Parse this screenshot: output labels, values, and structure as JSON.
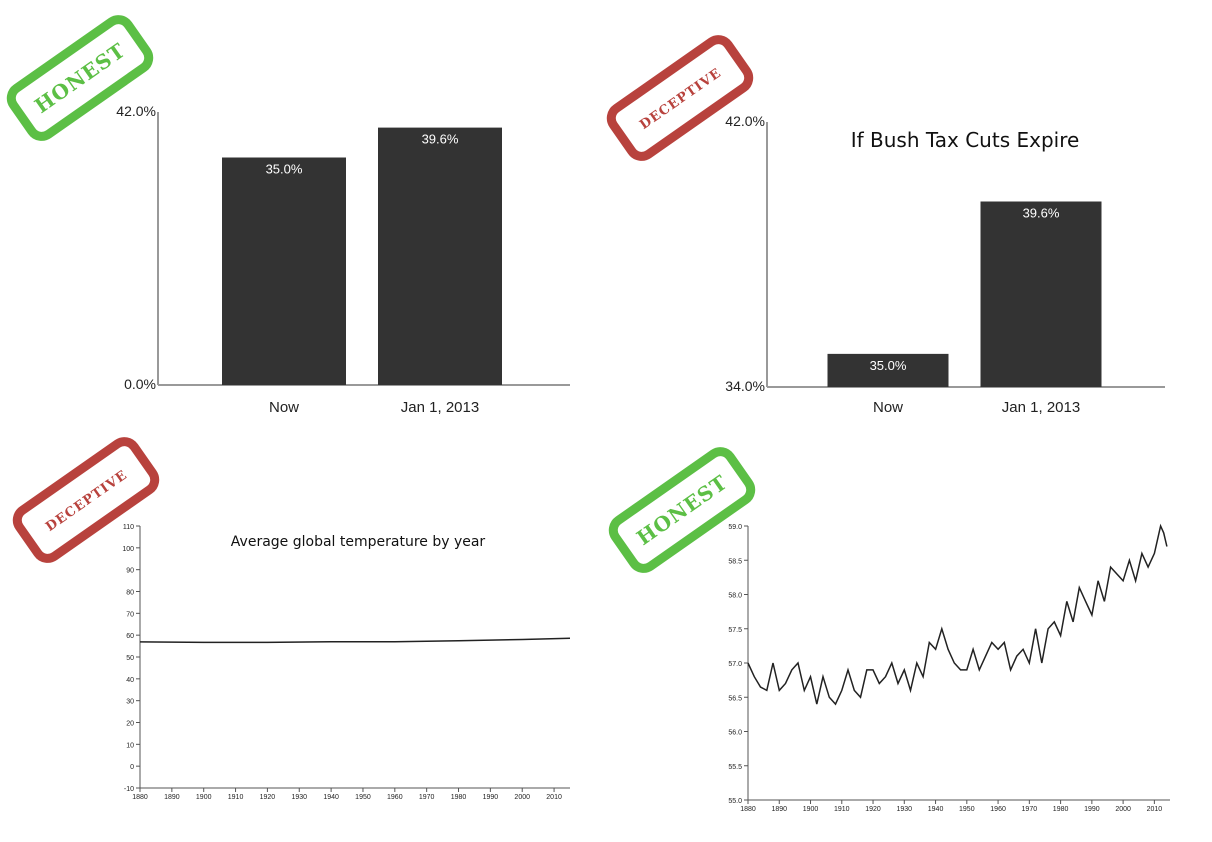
{
  "stamps": [
    {
      "text": "HONEST",
      "color": "#5cbf45"
    },
    {
      "text": "DECEPTIVE",
      "color": "#b8423d"
    },
    {
      "text": "DECEPTIVE",
      "color": "#b8423d"
    },
    {
      "text": "HONEST",
      "color": "#5cbf45"
    }
  ],
  "chart_data": [
    {
      "type": "bar",
      "title": "",
      "categories": [
        "Now",
        "Jan 1, 2013"
      ],
      "values": [
        35.0,
        39.6
      ],
      "value_labels": [
        "35.0%",
        "39.6%"
      ],
      "ylim": [
        0,
        42
      ],
      "ytick_labels": [
        "42.0%",
        "0.0%"
      ],
      "bar_color": "#333333"
    },
    {
      "type": "bar",
      "title": "If Bush Tax Cuts Expire",
      "categories": [
        "Now",
        "Jan 1, 2013"
      ],
      "values": [
        35.0,
        39.6
      ],
      "value_labels": [
        "35.0%",
        "39.6%"
      ],
      "ylim": [
        34,
        42
      ],
      "ytick_labels": [
        "42.0%",
        "34.0%"
      ],
      "bar_color": "#333333"
    },
    {
      "type": "line",
      "title": "Average global temperature by year",
      "ylim": [
        -10,
        110
      ],
      "yticks": [
        -10,
        0,
        10,
        20,
        30,
        40,
        50,
        60,
        70,
        80,
        90,
        100,
        110
      ],
      "xlim": [
        1880,
        2015
      ],
      "xticks": [
        1880,
        1890,
        1900,
        1910,
        1920,
        1930,
        1940,
        1950,
        1960,
        1970,
        1980,
        1990,
        2000,
        2010
      ],
      "x": [
        1880,
        1900,
        1920,
        1940,
        1960,
        1980,
        2000,
        2015
      ],
      "y": [
        56.9,
        56.7,
        56.7,
        57.0,
        57.0,
        57.4,
        58.0,
        58.6
      ]
    },
    {
      "type": "line",
      "title": "",
      "ylim": [
        55.0,
        59.0
      ],
      "yticks": [
        55.0,
        55.5,
        56.0,
        56.5,
        57.0,
        57.5,
        58.0,
        58.5,
        59.0
      ],
      "xlim": [
        1880,
        2015
      ],
      "xticks": [
        1880,
        1890,
        1900,
        1910,
        1920,
        1930,
        1940,
        1950,
        1960,
        1970,
        1980,
        1990,
        2000,
        2010
      ],
      "x": [
        1880,
        1882,
        1884,
        1886,
        1888,
        1890,
        1892,
        1894,
        1896,
        1898,
        1900,
        1902,
        1904,
        1906,
        1908,
        1910,
        1912,
        1914,
        1916,
        1918,
        1920,
        1922,
        1924,
        1926,
        1928,
        1930,
        1932,
        1934,
        1936,
        1938,
        1940,
        1942,
        1944,
        1946,
        1948,
        1950,
        1952,
        1954,
        1956,
        1958,
        1960,
        1962,
        1964,
        1966,
        1968,
        1970,
        1972,
        1974,
        1976,
        1978,
        1980,
        1982,
        1984,
        1986,
        1988,
        1990,
        1992,
        1994,
        1996,
        1998,
        2000,
        2002,
        2004,
        2006,
        2008,
        2010,
        2012,
        2013,
        2014
      ],
      "y": [
        57.0,
        56.8,
        56.65,
        56.6,
        57.0,
        56.6,
        56.7,
        56.9,
        57.0,
        56.6,
        56.8,
        56.4,
        56.8,
        56.5,
        56.4,
        56.6,
        56.9,
        56.6,
        56.5,
        56.9,
        56.9,
        56.7,
        56.8,
        57.0,
        56.7,
        56.9,
        56.6,
        57.0,
        56.8,
        57.3,
        57.2,
        57.5,
        57.2,
        57.0,
        56.9,
        56.9,
        57.2,
        56.9,
        57.1,
        57.3,
        57.2,
        57.3,
        56.9,
        57.1,
        57.2,
        57.0,
        57.5,
        57.0,
        57.5,
        57.6,
        57.4,
        57.9,
        57.6,
        58.1,
        57.9,
        57.7,
        58.2,
        57.9,
        58.4,
        58.3,
        58.2,
        58.5,
        58.2,
        58.6,
        58.4,
        58.6,
        59.0,
        58.9,
        58.7
      ]
    }
  ]
}
